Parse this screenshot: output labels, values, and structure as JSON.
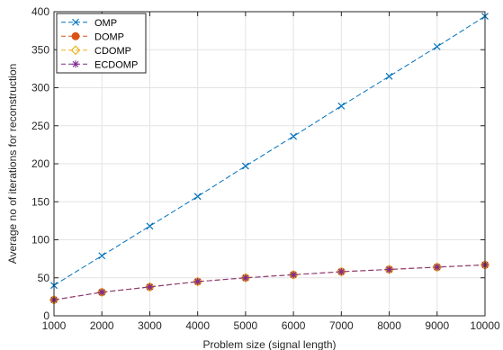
{
  "chart_data": {
    "type": "line",
    "title": "",
    "xlabel": "Problem size (signal length)",
    "ylabel": "Average no of iterations for reconstruction",
    "x": [
      1000,
      2000,
      3000,
      4000,
      5000,
      6000,
      7000,
      8000,
      9000,
      10000
    ],
    "xlim": [
      1000,
      10000
    ],
    "ylim": [
      0,
      400
    ],
    "x_ticks": [
      "1000",
      "2000",
      "3000",
      "4000",
      "5000",
      "6000",
      "7000",
      "8000",
      "9000",
      "10000"
    ],
    "y_ticks": [
      "0",
      "50",
      "100",
      "150",
      "200",
      "250",
      "300",
      "350",
      "400"
    ],
    "grid": true,
    "legend_position": "top-left",
    "series": [
      {
        "name": "OMP",
        "color": "#0072BD",
        "marker": "x",
        "values": [
          40,
          79,
          118,
          157,
          197,
          236,
          276,
          315,
          354,
          394
        ]
      },
      {
        "name": "DOMP",
        "color": "#D95319",
        "marker": "circle",
        "values": [
          21,
          31,
          38,
          45,
          50,
          54,
          58,
          61,
          64,
          67
        ]
      },
      {
        "name": "CDOMP",
        "color": "#EDB120",
        "marker": "diamond",
        "values": [
          21,
          31,
          38,
          45,
          50,
          54,
          58,
          61,
          64,
          67
        ]
      },
      {
        "name": "ECDOMP",
        "color": "#7E2F8E",
        "marker": "star",
        "values": [
          21,
          31,
          38,
          45,
          50,
          54,
          58,
          61,
          64,
          67
        ]
      }
    ]
  }
}
